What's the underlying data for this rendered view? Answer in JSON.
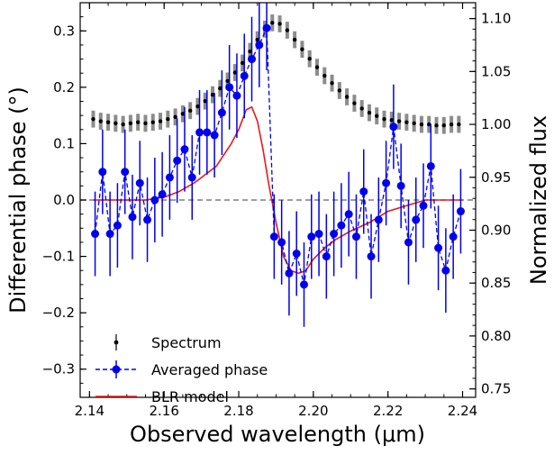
{
  "chart_data": {
    "type": "scatter",
    "xlabel": "Observed wavelength (μm)",
    "ylabel_left": "Differential phase (°)",
    "ylabel_right": "Normalized flux",
    "xlim": [
      2.1375,
      2.2435
    ],
    "ylim_left": [
      -0.35,
      0.35
    ],
    "ylim_right": [
      0.742,
      1.115
    ],
    "x_ticks": [
      2.14,
      2.16,
      2.18,
      2.2,
      2.22,
      2.24
    ],
    "x_tick_labels": [
      "2.14",
      "2.16",
      "2.18",
      "2.20",
      "2.22",
      "2.24"
    ],
    "y_left_ticks": [
      -0.3,
      -0.2,
      -0.1,
      0.0,
      0.1,
      0.2,
      0.3
    ],
    "y_left_tick_labels": [
      "−0.3",
      "−0.2",
      "−0.1",
      "0.0",
      "0.1",
      "0.2",
      "0.3"
    ],
    "y_right_ticks": [
      0.75,
      0.8,
      0.85,
      0.9,
      0.95,
      1.0,
      1.05,
      1.1
    ],
    "y_right_tick_labels": [
      "0.75",
      "0.80",
      "0.85",
      "0.90",
      "0.95",
      "1.00",
      "1.05",
      "1.10"
    ],
    "zero_line": 0.0,
    "legend": {
      "location": "lower-left",
      "entries": [
        "Spectrum",
        "Averaged phase",
        "BLR model"
      ]
    },
    "colors": {
      "spectrum": "#000000",
      "spectrum_error": "#8c8c8c",
      "averaged_phase": "#0000ee",
      "blr_model": "#e8191c",
      "zero_line": "#7f7f7f"
    },
    "series": [
      {
        "name": "Spectrum",
        "axis": "right",
        "style": "points with grey error bars",
        "error": 0.008,
        "x": [
          2.141,
          2.143,
          2.145,
          2.147,
          2.149,
          2.151,
          2.153,
          2.155,
          2.157,
          2.159,
          2.161,
          2.163,
          2.165,
          2.167,
          2.169,
          2.171,
          2.173,
          2.175,
          2.177,
          2.179,
          2.181,
          2.183,
          2.185,
          2.187,
          2.189,
          2.191,
          2.193,
          2.195,
          2.197,
          2.199,
          2.201,
          2.203,
          2.205,
          2.207,
          2.209,
          2.211,
          2.213,
          2.215,
          2.217,
          2.219,
          2.221,
          2.223,
          2.225,
          2.227,
          2.229,
          2.231,
          2.233,
          2.235,
          2.237,
          2.239
        ],
        "y": [
          1.005,
          1.003,
          1.002,
          1.001,
          1.0,
          1.001,
          1.002,
          1.001,
          1.002,
          1.003,
          1.005,
          1.007,
          1.01,
          1.013,
          1.017,
          1.022,
          1.028,
          1.034,
          1.041,
          1.049,
          1.058,
          1.069,
          1.08,
          1.09,
          1.096,
          1.095,
          1.089,
          1.08,
          1.071,
          1.062,
          1.054,
          1.046,
          1.039,
          1.032,
          1.026,
          1.02,
          1.015,
          1.011,
          1.008,
          1.005,
          1.004,
          1.003,
          1.002,
          1.001,
          1.0,
          1.0,
          0.999,
          0.999,
          1.0,
          1.0
        ]
      },
      {
        "name": "Averaged phase",
        "axis": "left",
        "style": "dashed line with markers and error bars",
        "x": [
          2.1415,
          2.1435,
          2.1455,
          2.1475,
          2.1495,
          2.1515,
          2.1535,
          2.1555,
          2.1575,
          2.1595,
          2.1615,
          2.1635,
          2.1655,
          2.1675,
          2.1695,
          2.1715,
          2.1735,
          2.1755,
          2.1775,
          2.1795,
          2.1815,
          2.1835,
          2.1855,
          2.1875,
          2.1895,
          2.1915,
          2.1935,
          2.1955,
          2.1975,
          2.1995,
          2.2015,
          2.2035,
          2.2055,
          2.2075,
          2.2095,
          2.2115,
          2.2135,
          2.2155,
          2.2175,
          2.2195,
          2.2215,
          2.2235,
          2.2255,
          2.2275,
          2.2295,
          2.2315,
          2.2335,
          2.2355,
          2.2375,
          2.2395
        ],
        "y": [
          -0.06,
          0.05,
          -0.06,
          -0.045,
          0.05,
          -0.03,
          0.03,
          -0.035,
          0.0,
          0.01,
          0.04,
          0.07,
          0.09,
          0.04,
          0.12,
          0.12,
          0.115,
          0.155,
          0.2,
          0.185,
          0.22,
          0.25,
          0.275,
          0.305,
          -0.065,
          -0.075,
          -0.13,
          -0.095,
          -0.15,
          -0.065,
          -0.06,
          -0.1,
          -0.06,
          -0.045,
          -0.025,
          -0.065,
          0.015,
          -0.1,
          -0.035,
          0.03,
          0.13,
          0.025,
          -0.075,
          -0.035,
          -0.01,
          0.06,
          -0.085,
          -0.125,
          -0.065,
          -0.02
        ],
        "yerr": [
          0.075,
          0.075,
          0.075,
          0.075,
          0.075,
          0.075,
          0.075,
          0.075,
          0.075,
          0.075,
          0.075,
          0.075,
          0.075,
          0.075,
          0.075,
          0.075,
          0.075,
          0.075,
          0.075,
          0.075,
          0.075,
          0.075,
          0.075,
          0.075,
          0.075,
          0.075,
          0.075,
          0.075,
          0.075,
          0.075,
          0.075,
          0.075,
          0.075,
          0.075,
          0.075,
          0.075,
          0.075,
          0.075,
          0.075,
          0.075,
          0.075,
          0.075,
          0.075,
          0.075,
          0.075,
          0.075,
          0.075,
          0.075,
          0.075,
          0.075
        ]
      },
      {
        "name": "BLR model",
        "axis": "left",
        "style": "solid line",
        "x": [
          2.141,
          2.15,
          2.155,
          2.16,
          2.164,
          2.168,
          2.171,
          2.174,
          2.176,
          2.178,
          2.18,
          2.182,
          2.1835,
          2.185,
          2.1865,
          2.188,
          2.19,
          2.192,
          2.194,
          2.196,
          2.198,
          2.2,
          2.203,
          2.206,
          2.21,
          2.215,
          2.22,
          2.225,
          2.23,
          2.24
        ],
        "y": [
          0.0,
          0.0,
          0.0,
          0.005,
          0.015,
          0.03,
          0.045,
          0.06,
          0.08,
          0.1,
          0.125,
          0.16,
          0.165,
          0.14,
          0.09,
          0.03,
          -0.04,
          -0.1,
          -0.125,
          -0.13,
          -0.125,
          -0.105,
          -0.085,
          -0.07,
          -0.055,
          -0.04,
          -0.02,
          -0.01,
          0.0,
          0.0
        ]
      }
    ]
  }
}
